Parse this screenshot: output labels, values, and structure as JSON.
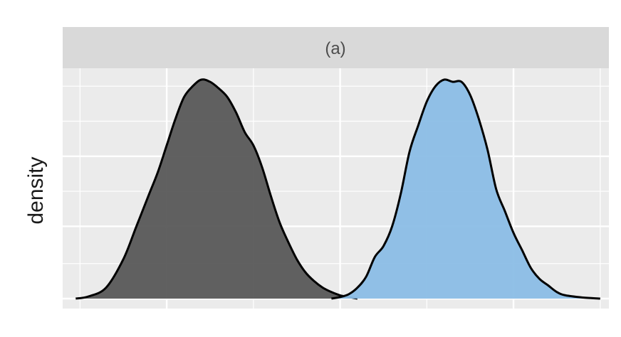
{
  "chart_data": {
    "type": "area",
    "facet_label": "(a)",
    "title": "",
    "xlabel": "",
    "ylabel": "density",
    "show_x_tick_labels": false,
    "show_y_tick_labels": false,
    "grid": true,
    "xlim": [
      -0.2,
      6.1
    ],
    "ylim": [
      0,
      1.0
    ],
    "x_major_breaks": [
      1,
      3,
      5
    ],
    "x_minor_breaks": [
      0,
      2,
      4,
      6
    ],
    "y_major_breaks": [
      0.33,
      0.65
    ],
    "y_minor_breaks": [
      0.16,
      0.49,
      0.81,
      0.97
    ],
    "series": [
      {
        "fill": "#595959",
        "outline": "#000000",
        "x": [
          -0.05,
          0.1,
          0.3,
          0.5,
          0.65,
          0.8,
          0.9,
          1.0,
          1.1,
          1.2,
          1.3,
          1.4,
          1.5,
          1.6,
          1.7,
          1.8,
          1.9,
          2.0,
          2.1,
          2.2,
          2.3,
          2.4,
          2.5,
          2.6,
          2.7,
          2.8,
          2.9,
          3.0,
          3.1,
          3.2
        ],
        "y": [
          0.0,
          0.01,
          0.05,
          0.18,
          0.33,
          0.48,
          0.58,
          0.7,
          0.82,
          0.92,
          0.97,
          1.0,
          0.99,
          0.96,
          0.92,
          0.85,
          0.76,
          0.7,
          0.6,
          0.47,
          0.35,
          0.26,
          0.18,
          0.12,
          0.08,
          0.05,
          0.03,
          0.015,
          0.007,
          0.0
        ]
      },
      {
        "fill": "#8bbde6",
        "outline": "#000000",
        "x": [
          2.9,
          3.0,
          3.1,
          3.2,
          3.3,
          3.4,
          3.5,
          3.6,
          3.7,
          3.8,
          3.9,
          4.0,
          4.1,
          4.2,
          4.3,
          4.4,
          4.5,
          4.6,
          4.7,
          4.8,
          4.9,
          5.0,
          5.1,
          5.2,
          5.3,
          5.4,
          5.5,
          5.6,
          5.8,
          6.0
        ],
        "y": [
          0.0,
          0.007,
          0.02,
          0.05,
          0.1,
          0.19,
          0.24,
          0.33,
          0.48,
          0.67,
          0.79,
          0.9,
          0.97,
          1.0,
          0.99,
          0.99,
          0.93,
          0.82,
          0.68,
          0.5,
          0.4,
          0.3,
          0.22,
          0.14,
          0.09,
          0.06,
          0.03,
          0.015,
          0.005,
          0.0
        ]
      }
    ]
  }
}
